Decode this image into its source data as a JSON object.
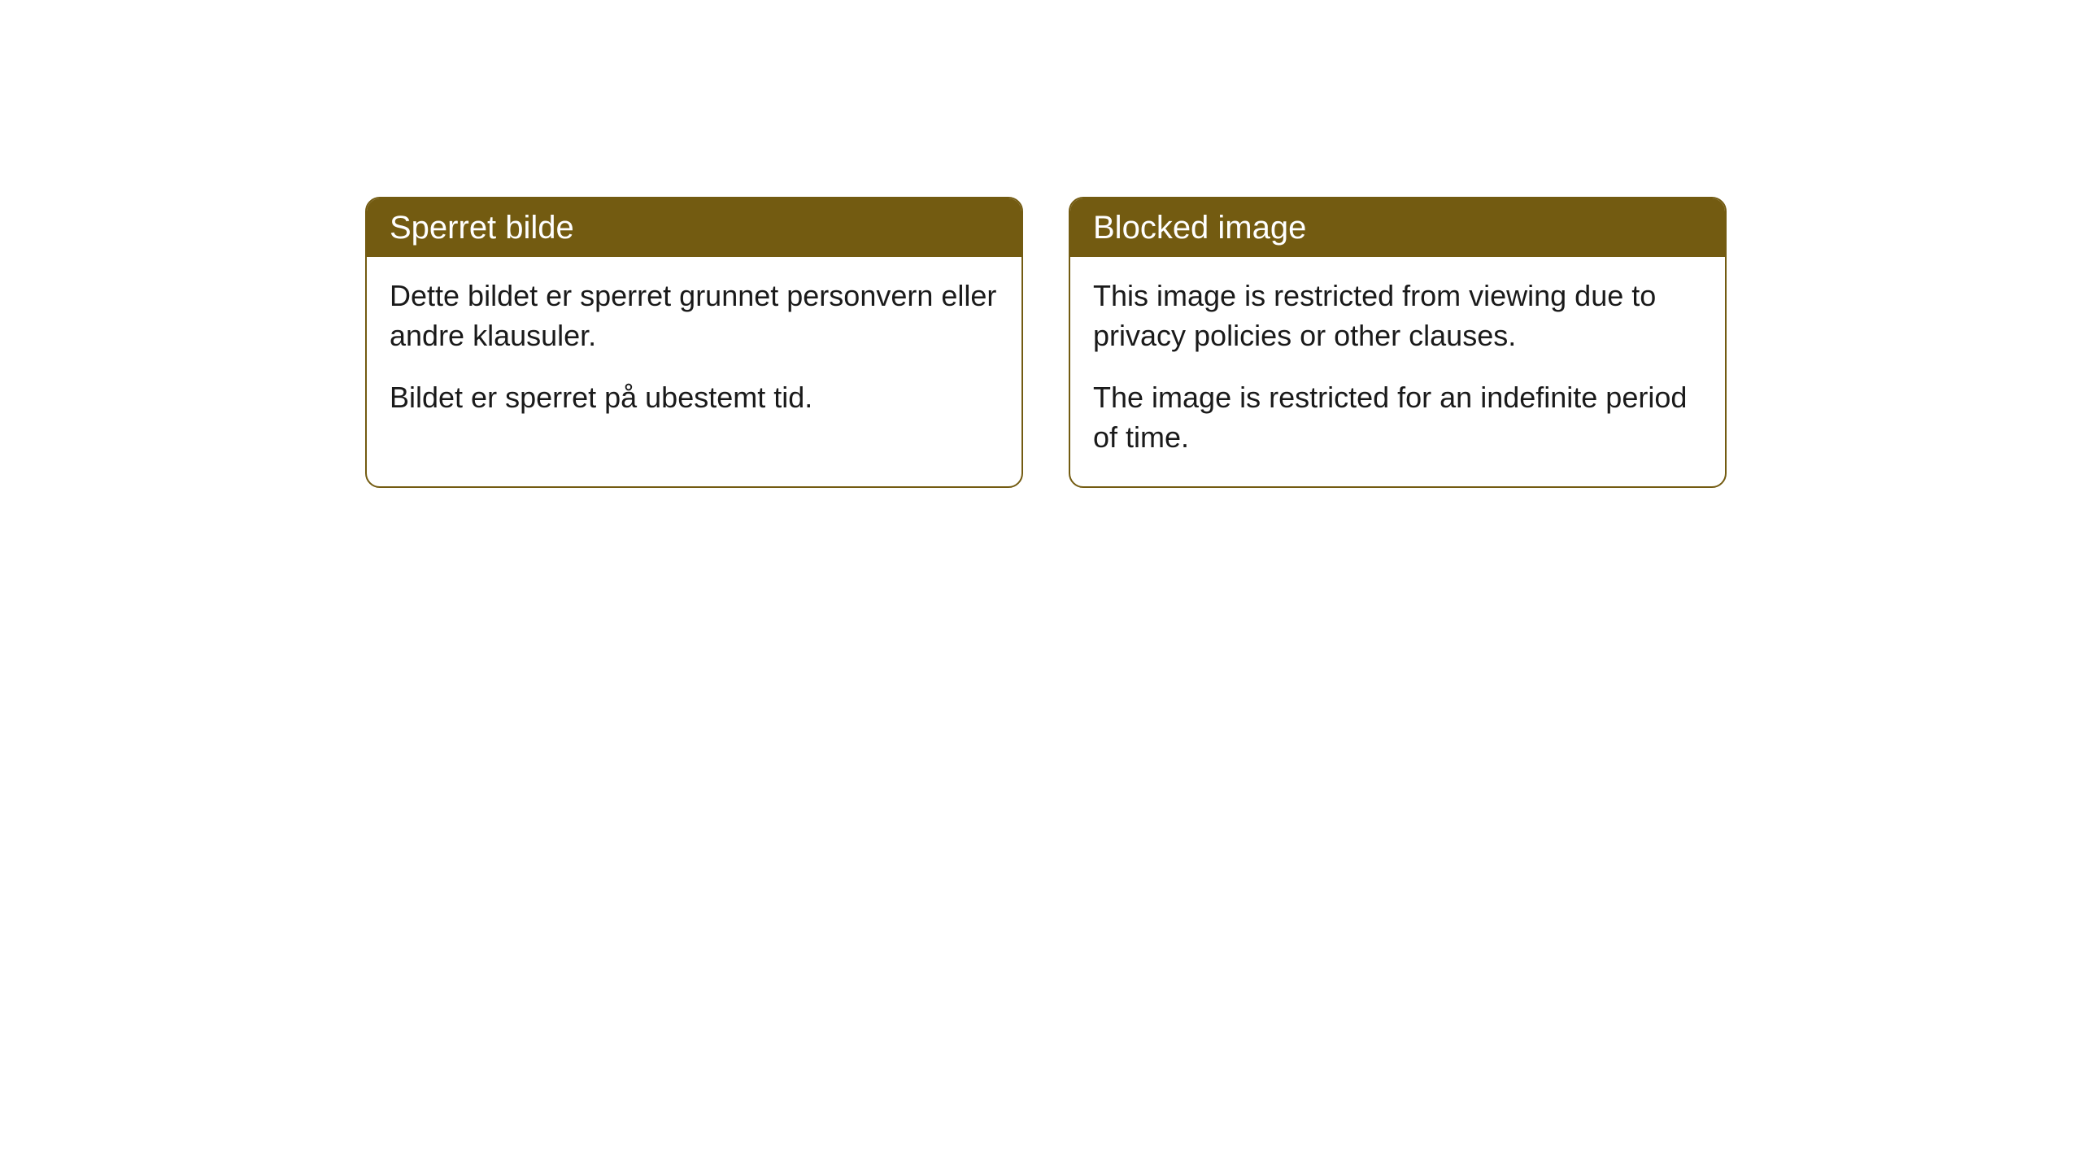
{
  "cards": {
    "left": {
      "title": "Sperret bilde",
      "paragraph1": "Dette bildet er sperret grunnet personvern eller andre klausuler.",
      "paragraph2": "Bildet er sperret på ubestemt tid."
    },
    "right": {
      "title": "Blocked image",
      "paragraph1": "This image is restricted from viewing due to privacy policies or other clauses.",
      "paragraph2": "The image is restricted for an indefinite period of time."
    }
  },
  "styling": {
    "header_bg": "#735b11",
    "header_text": "#ffffff",
    "border_color": "#735b11",
    "body_bg": "#ffffff",
    "body_text": "#1a1a1a",
    "border_radius": 18,
    "title_fontsize": 40,
    "body_fontsize": 36
  }
}
